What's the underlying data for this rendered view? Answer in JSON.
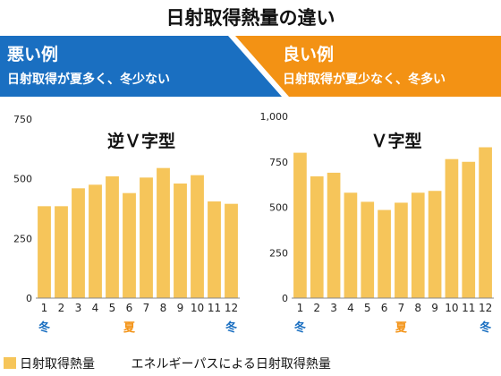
{
  "title": "日射取得熱量の違い",
  "banners": {
    "bad": {
      "heading": "悪い例",
      "sub": "日射取得が夏多く、冬少ない",
      "color": "#1a6fc1"
    },
    "good": {
      "heading": "良い例",
      "sub": "日射取得が夏少なく、冬多い",
      "color": "#f39214"
    }
  },
  "legend": {
    "item1": "日射取得熱量",
    "item2": "エネルギーパスによる日射取得熱量"
  },
  "chart_data": [
    {
      "type": "bar",
      "title": "逆Ｖ字型",
      "categories": [
        "1",
        "2",
        "3",
        "4",
        "5",
        "6",
        "7",
        "8",
        "9",
        "10",
        "11",
        "12"
      ],
      "values": [
        385,
        385,
        460,
        475,
        510,
        440,
        505,
        545,
        480,
        515,
        405,
        395
      ],
      "ylim": [
        0,
        750
      ],
      "yticks": [
        "0",
        "250",
        "500",
        "750"
      ],
      "ytick_values": [
        0,
        250,
        500,
        750
      ],
      "seasons": [
        {
          "label": "冬",
          "at": "1"
        },
        {
          "label": "夏",
          "at": "6"
        },
        {
          "label": "冬",
          "at": "12"
        }
      ],
      "bar_color": "#f6c55a"
    },
    {
      "type": "bar",
      "title": "Ｖ字型",
      "categories": [
        "1",
        "2",
        "3",
        "4",
        "5",
        "6",
        "7",
        "8",
        "9",
        "10",
        "11",
        "12"
      ],
      "values": [
        800,
        670,
        690,
        580,
        530,
        485,
        525,
        580,
        590,
        765,
        750,
        830
      ],
      "ylim": [
        0,
        1000
      ],
      "yticks": [
        "0",
        "250",
        "500",
        "750",
        "1,000"
      ],
      "ytick_values": [
        0,
        250,
        500,
        750,
        1000
      ],
      "seasons": [
        {
          "label": "冬",
          "at": "1"
        },
        {
          "label": "夏",
          "at": "7"
        },
        {
          "label": "冬",
          "at": "12"
        }
      ],
      "bar_color": "#f6c55a"
    }
  ],
  "colors": {
    "winter": "#1a6fc1",
    "summer": "#f39214",
    "bar": "#f6c55a"
  }
}
